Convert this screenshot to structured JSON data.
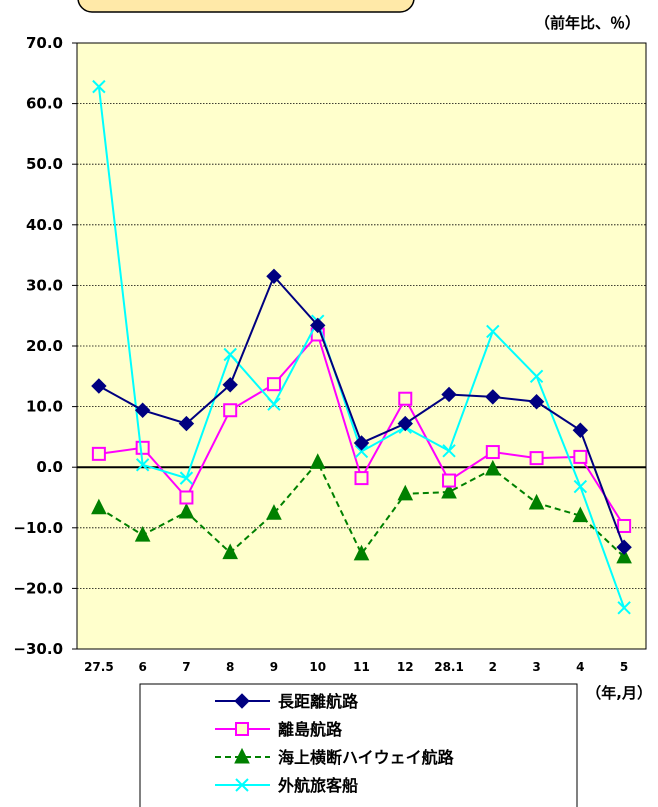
{
  "chart_data": {
    "type": "line",
    "title": "",
    "y_unit": "（前年比、％）",
    "x_unit": "（年,月）",
    "categories": [
      "27.5",
      "6",
      "7",
      "8",
      "9",
      "10",
      "11",
      "12",
      "28.1",
      "2",
      "3",
      "4",
      "5"
    ],
    "ylim": [
      -30,
      70
    ],
    "yticks": [
      "70.0",
      "60.0",
      "50.0",
      "40.0",
      "30.0",
      "20.0",
      "10.0",
      "0.0",
      "−10.0",
      "−20.0",
      "−30.0"
    ],
    "ytick_values": [
      70,
      60,
      50,
      40,
      30,
      20,
      10,
      0,
      -10,
      -20,
      -30
    ],
    "grid": true,
    "legend_position": "bottom",
    "series": [
      {
        "name": "長距離航路",
        "color": "#000080",
        "marker": "diamond",
        "dash": "solid",
        "values": [
          13.4,
          9.4,
          7.2,
          13.6,
          31.5,
          23.4,
          4.0,
          7.2,
          12.0,
          11.6,
          10.8,
          6.1,
          -13.2
        ]
      },
      {
        "name": "離島航路",
        "color": "#ff00ff",
        "marker": "square-open",
        "dash": "solid",
        "values": [
          2.2,
          3.2,
          -5.0,
          9.4,
          13.7,
          21.9,
          -1.8,
          11.3,
          -2.2,
          2.5,
          1.5,
          1.7,
          -9.7
        ]
      },
      {
        "name": "海上横断ハイウェイ航路",
        "color": "#008000",
        "marker": "triangle",
        "dash": "dashed",
        "values": [
          -6.7,
          -11.2,
          -7.4,
          -14.1,
          -7.6,
          0.8,
          -14.3,
          -4.4,
          -4.1,
          -0.3,
          -5.9,
          -8.0,
          -14.8
        ]
      },
      {
        "name": "外航旅客船",
        "color": "#00ffff",
        "marker": "x",
        "dash": "solid",
        "values": [
          62.8,
          0.4,
          -1.8,
          18.6,
          10.4,
          24.1,
          2.6,
          6.6,
          2.7,
          22.4,
          15.0,
          -3.2,
          -23.2
        ]
      }
    ]
  }
}
